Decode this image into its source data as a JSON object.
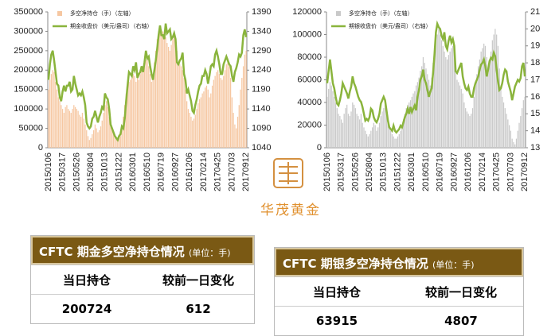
{
  "chart_data": [
    {
      "type": "combo",
      "categories": [
        "20150106",
        null,
        null,
        null,
        null,
        null,
        null,
        null,
        null,
        null,
        "20150317",
        null,
        null,
        null,
        null,
        null,
        null,
        null,
        null,
        null,
        "20150526",
        null,
        null,
        null,
        null,
        null,
        null,
        null,
        null,
        null,
        "20150804",
        null,
        null,
        null,
        null,
        null,
        null,
        null,
        null,
        null,
        "20151013",
        null,
        null,
        null,
        null,
        null,
        null,
        null,
        null,
        null,
        "20151222",
        null,
        null,
        null,
        null,
        null,
        null,
        null,
        null,
        null,
        "20160301",
        null,
        null,
        null,
        null,
        null,
        null,
        null,
        null,
        null,
        "20160510",
        null,
        null,
        null,
        null,
        null,
        null,
        null,
        null,
        null,
        "20160719",
        null,
        null,
        null,
        null,
        null,
        null,
        null,
        null,
        null,
        "20160927",
        null,
        null,
        null,
        null,
        null,
        null,
        null,
        null,
        null,
        "20161206",
        null,
        null,
        null,
        null,
        null,
        null,
        null,
        null,
        null,
        "20170214",
        null,
        null,
        null,
        null,
        null,
        null,
        null,
        null,
        null,
        "20170425",
        null,
        null,
        null,
        null,
        null,
        null,
        null,
        null,
        null,
        "20170703",
        null,
        null,
        null,
        null,
        null,
        null,
        null,
        null,
        null,
        "20170912"
      ],
      "ylim": [
        0,
        350000
      ],
      "yticks": [
        0,
        50000,
        100000,
        150000,
        200000,
        250000,
        300000,
        350000
      ],
      "y2lim": [
        1040,
        1390
      ],
      "y2ticks": [
        1040,
        1090,
        1140,
        1190,
        1240,
        1290,
        1340,
        1390
      ],
      "series": [
        {
          "name": "多空净持仓（手）（左轴）",
          "type": "bar",
          "color": "#f6c7a1",
          "values": [
            150000,
            175000,
            190000,
            200000,
            195000,
            170000,
            150000,
            130000,
            120000,
            110000,
            100000,
            90000,
            105000,
            110000,
            100000,
            95000,
            90000,
            100000,
            110000,
            105000,
            100000,
            95000,
            85000,
            80000,
            90000,
            75000,
            60000,
            45000,
            30000,
            20000,
            25000,
            35000,
            45000,
            60000,
            50000,
            40000,
            45000,
            55000,
            70000,
            90000,
            110000,
            120000,
            105000,
            80000,
            60000,
            50000,
            40000,
            30000,
            25000,
            20000,
            25000,
            30000,
            50000,
            80000,
            110000,
            140000,
            160000,
            170000,
            175000,
            180000,
            190000,
            185000,
            170000,
            180000,
            175000,
            190000,
            200000,
            210000,
            220000,
            225000,
            230000,
            210000,
            190000,
            170000,
            185000,
            220000,
            250000,
            280000,
            300000,
            310000,
            305000,
            300000,
            295000,
            285000,
            270000,
            260000,
            250000,
            265000,
            280000,
            290000,
            280000,
            250000,
            220000,
            215000,
            210000,
            200000,
            180000,
            150000,
            120000,
            100000,
            90000,
            80000,
            70000,
            75000,
            85000,
            100000,
            115000,
            125000,
            130000,
            140000,
            145000,
            155000,
            160000,
            150000,
            130000,
            140000,
            160000,
            175000,
            185000,
            195000,
            200000,
            190000,
            180000,
            175000,
            185000,
            200000,
            215000,
            230000,
            210000,
            180000,
            130000,
            90000,
            60000,
            50000,
            80000,
            110000,
            150000,
            180000,
            210000,
            240000,
            250000
          ]
        },
        {
          "name": "期金收盘价（美元/盎司）（右轴）",
          "type": "line",
          "axis": "y2",
          "color": "#8ab43c",
          "values": [
            1215,
            1255,
            1280,
            1290,
            1265,
            1235,
            1205,
            1200,
            1170,
            1160,
            1185,
            1200,
            1185,
            1200,
            1200,
            1210,
            1185,
            1190,
            1225,
            1205,
            1190,
            1175,
            1180,
            1175,
            1185,
            1170,
            1150,
            1105,
            1095,
            1090,
            1095,
            1115,
            1120,
            1135,
            1120,
            1105,
            1120,
            1130,
            1145,
            1140,
            1180,
            1170,
            1165,
            1140,
            1100,
            1090,
            1080,
            1070,
            1065,
            1060,
            1070,
            1075,
            1095,
            1090,
            1115,
            1160,
            1200,
            1235,
            1230,
            1225,
            1250,
            1240,
            1260,
            1220,
            1230,
            1235,
            1250,
            1235,
            1260,
            1290,
            1270,
            1275,
            1250,
            1230,
            1215,
            1240,
            1265,
            1295,
            1330,
            1355,
            1330,
            1330,
            1320,
            1360,
            1335,
            1340,
            1345,
            1320,
            1325,
            1335,
            1320,
            1260,
            1255,
            1265,
            1270,
            1285,
            1230,
            1215,
            1180,
            1190,
            1175,
            1160,
            1135,
            1130,
            1150,
            1165,
            1185,
            1200,
            1205,
            1225,
            1225,
            1240,
            1230,
            1205,
            1225,
            1250,
            1255,
            1250,
            1280,
            1290,
            1275,
            1255,
            1230,
            1230,
            1255,
            1265,
            1275,
            1265,
            1255,
            1250,
            1225,
            1210,
            1235,
            1245,
            1260,
            1280,
            1275,
            1285,
            1330,
            1345,
            1325
          ]
        }
      ]
    },
    {
      "type": "combo",
      "categories": [
        "20150106",
        null,
        null,
        null,
        null,
        null,
        null,
        null,
        null,
        null,
        "20150317",
        null,
        null,
        null,
        null,
        null,
        null,
        null,
        null,
        null,
        "20150526",
        null,
        null,
        null,
        null,
        null,
        null,
        null,
        null,
        null,
        "20150804",
        null,
        null,
        null,
        null,
        null,
        null,
        null,
        null,
        null,
        "20151013",
        null,
        null,
        null,
        null,
        null,
        null,
        null,
        null,
        null,
        "20151222",
        null,
        null,
        null,
        null,
        null,
        null,
        null,
        null,
        null,
        "20160301",
        null,
        null,
        null,
        null,
        null,
        null,
        null,
        null,
        null,
        "20160510",
        null,
        null,
        null,
        null,
        null,
        null,
        null,
        null,
        null,
        "20160719",
        null,
        null,
        null,
        null,
        null,
        null,
        null,
        null,
        null,
        "20160927",
        null,
        null,
        null,
        null,
        null,
        null,
        null,
        null,
        null,
        "20161206",
        null,
        null,
        null,
        null,
        null,
        null,
        null,
        null,
        null,
        "20170214",
        null,
        null,
        null,
        null,
        null,
        null,
        null,
        null,
        null,
        "20170425",
        null,
        null,
        null,
        null,
        null,
        null,
        null,
        null,
        null,
        "20170703",
        null,
        null,
        null,
        null,
        null,
        null,
        null,
        null,
        null,
        "20170912"
      ],
      "ylim": [
        0,
        120000
      ],
      "yticks": [
        0,
        20000,
        40000,
        60000,
        80000,
        100000,
        120000
      ],
      "y2lim": [
        13,
        21
      ],
      "y2ticks": [
        13,
        14,
        15,
        16,
        17,
        18,
        19,
        20,
        21
      ],
      "series": [
        {
          "name": "多空净持仓（手）（左轴）",
          "type": "bar",
          "color": "#c9c9c9",
          "values": [
            45000,
            52000,
            58000,
            55000,
            50000,
            45000,
            40000,
            35000,
            30000,
            28000,
            25000,
            22000,
            30000,
            35000,
            38000,
            30000,
            28000,
            32000,
            40000,
            38000,
            35000,
            30000,
            28000,
            25000,
            30000,
            22000,
            18000,
            15000,
            12000,
            10000,
            12000,
            15000,
            18000,
            22000,
            20000,
            15000,
            18000,
            22000,
            28000,
            32000,
            35000,
            38000,
            30000,
            25000,
            20000,
            15000,
            12000,
            10000,
            8000,
            8000,
            10000,
            12000,
            15000,
            20000,
            25000,
            30000,
            35000,
            38000,
            40000,
            42000,
            45000,
            48000,
            50000,
            55000,
            58000,
            62000,
            68000,
            72000,
            80000,
            75000,
            70000,
            65000,
            60000,
            55000,
            62000,
            75000,
            85000,
            95000,
            100000,
            105000,
            100000,
            95000,
            90000,
            85000,
            80000,
            78000,
            82000,
            85000,
            88000,
            90000,
            85000,
            70000,
            60000,
            58000,
            55000,
            52000,
            48000,
            40000,
            35000,
            32000,
            30000,
            28000,
            30000,
            35000,
            45000,
            55000,
            65000,
            72000,
            78000,
            85000,
            88000,
            92000,
            90000,
            80000,
            70000,
            75000,
            85000,
            95000,
            100000,
            105000,
            100000,
            90000,
            70000,
            55000,
            45000,
            40000,
            35000,
            30000,
            25000,
            20000,
            15000,
            8000,
            5000,
            3000,
            8000,
            15000,
            22000,
            28000,
            35000,
            42000,
            45000
          ]
        },
        {
          "name": "期银收盘价（美元/盎司）（右轴）",
          "type": "line",
          "axis": "y2",
          "color": "#8ab43c",
          "values": [
            16.8,
            17.5,
            18.2,
            17.5,
            16.8,
            16.5,
            16.0,
            15.6,
            15.5,
            15.8,
            16.2,
            16.8,
            16.6,
            16.4,
            16.2,
            15.9,
            16.3,
            16.6,
            17.2,
            16.8,
            16.6,
            16.3,
            16.0,
            15.8,
            15.7,
            15.4,
            15.0,
            14.6,
            14.7,
            14.6,
            14.8,
            15.3,
            15.2,
            14.8,
            14.6,
            14.5,
            14.7,
            15.0,
            15.6,
            15.8,
            16.0,
            15.8,
            15.2,
            14.6,
            14.2,
            14.1,
            14.0,
            14.3,
            14.0,
            13.9,
            14.0,
            14.1,
            14.3,
            14.2,
            14.5,
            14.8,
            15.0,
            15.3,
            15.0,
            15.4,
            15.1,
            15.3,
            15.5,
            15.2,
            16.0,
            16.4,
            17.0,
            17.2,
            17.6,
            17.0,
            16.8,
            16.4,
            16.0,
            16.3,
            16.5,
            17.4,
            18.5,
            19.8,
            20.3,
            20.1,
            20.0,
            19.6,
            19.4,
            19.8,
            19.0,
            18.8,
            19.3,
            19.6,
            19.2,
            19.4,
            19.0,
            17.5,
            17.4,
            17.6,
            17.8,
            18.0,
            17.2,
            16.8,
            16.5,
            16.4,
            16.6,
            16.2,
            16.0,
            16.0,
            16.5,
            16.8,
            17.0,
            17.2,
            17.6,
            17.9,
            18.0,
            18.2,
            17.8,
            17.2,
            17.6,
            18.1,
            18.3,
            18.2,
            18.6,
            18.4,
            17.6,
            16.9,
            16.4,
            16.5,
            16.8,
            17.3,
            17.6,
            17.5,
            16.9,
            16.6,
            16.3,
            15.8,
            16.2,
            16.6,
            16.8,
            17.0,
            16.9,
            17.1,
            17.8,
            18.0,
            17.2
          ]
        }
      ]
    }
  ],
  "logo": {
    "text": "华茂黄金"
  },
  "tables": [
    {
      "title": "CFTC 期金多空净持仓情况",
      "unit": "(单位：手)",
      "headers": [
        "当日持仓",
        "较前一日变化"
      ],
      "row": [
        200724,
        612
      ]
    },
    {
      "title": "CFTC 期银多空净持仓情况",
      "unit": "(单位：手)",
      "headers": [
        "当日持仓",
        "较前一日变化"
      ],
      "row": [
        63915,
        4807
      ]
    }
  ]
}
